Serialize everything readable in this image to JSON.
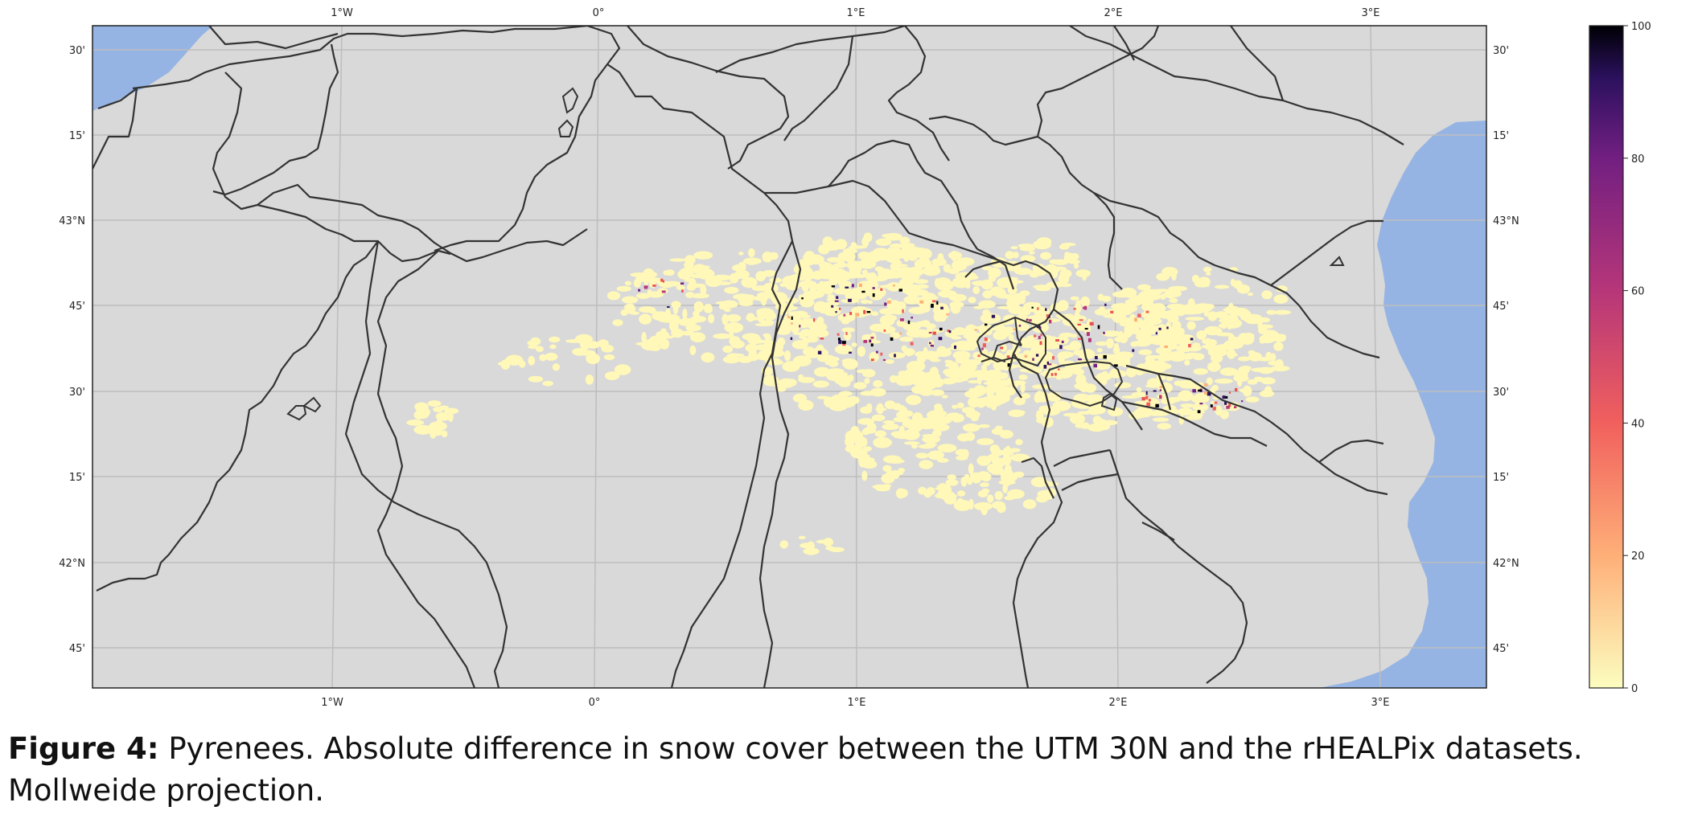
{
  "map": {
    "top_ticks": [
      "1°W",
      "0°",
      "1°E",
      "2°E",
      "3°E"
    ],
    "bottom_ticks": [
      "1°W",
      "0°",
      "1°E",
      "2°E",
      "3°E"
    ],
    "lat_ticks": [
      "30'",
      "15'",
      "43°N",
      "45'",
      "30'",
      "15'",
      "42°N",
      "45'"
    ],
    "colors": {
      "land": "#d9d9d9",
      "sea": "#95b4e4",
      "border": "#333333",
      "grid": "#bdbdbd",
      "snow_diff_low": "#fff8b8"
    }
  },
  "colorbar": {
    "ticks": [
      "100",
      "80",
      "60",
      "40",
      "20",
      "0"
    ],
    "range": [
      0,
      100
    ],
    "colormap": "magma_r"
  },
  "caption": {
    "label": "Figure 4:",
    "text": " Pyrenees. Absolute difference in snow cover between the UTM 30N and the rHEALPix datasets. Mollweide projection."
  }
}
